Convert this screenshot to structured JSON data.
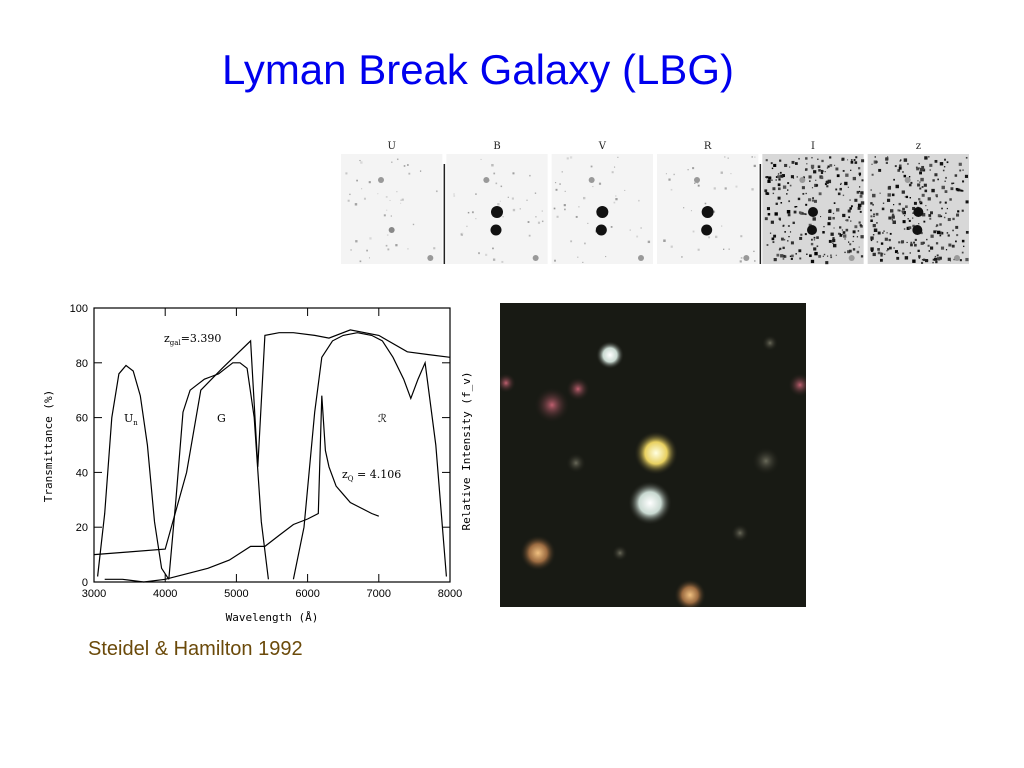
{
  "title": "Lyman Break Galaxy (LBG)",
  "citation": "Steidel & Hamilton 1992",
  "band_strip": {
    "bands": [
      "U",
      "B",
      "V",
      "R",
      "I",
      "z"
    ]
  },
  "chart_data": {
    "type": "line",
    "xlabel": "Wavelength (Å)",
    "ylabel": "Transmittance (%)",
    "ylabel_right": "Relative Intensity (f_v)",
    "xlim": [
      3000,
      8000
    ],
    "ylim": [
      0,
      100
    ],
    "x_ticks": [
      "3000",
      "4000",
      "5000",
      "6000",
      "7000",
      "8000"
    ],
    "y_ticks": [
      "0",
      "20",
      "40",
      "60",
      "80",
      "100"
    ],
    "annotations": {
      "zgal": "z",
      "zgal_sub": "gal",
      "zgal_val": "=3.390",
      "zq": "z",
      "zq_sub": "Q",
      "zq_val": " = 4.106",
      "un": "U",
      "un_sub": "n",
      "g": "G",
      "r": "ℛ"
    },
    "series": [
      {
        "x": [
          3050,
          3150,
          3250,
          3350,
          3450,
          3550,
          3650,
          3750,
          3850,
          3950,
          4050
        ],
        "y": [
          2,
          25,
          60,
          76,
          79,
          77,
          68,
          50,
          22,
          5,
          1
        ]
      },
      {
        "x": [
          4050,
          4150,
          4250,
          4350,
          4450,
          4550,
          4650,
          4750,
          4850,
          4950,
          5050,
          5150,
          5250,
          5350,
          5450
        ],
        "y": [
          1,
          30,
          62,
          70,
          72,
          74,
          75,
          76,
          78,
          80,
          80,
          78,
          60,
          22,
          1
        ]
      },
      {
        "x": [
          5800,
          5950,
          6100,
          6200,
          6350,
          6500,
          6700,
          6900,
          7050,
          7200,
          7350,
          7450,
          7550,
          7650,
          7800,
          7950
        ],
        "y": [
          1,
          20,
          62,
          82,
          88,
          90,
          91,
          90,
          88,
          82,
          74,
          67,
          74,
          80,
          50,
          2
        ]
      },
      {
        "x": [
          3000,
          3500,
          4000,
          4300,
          4500,
          4800,
          5000,
          5200,
          5300,
          5400,
          5600,
          5800,
          6100,
          6300,
          6600,
          7000,
          7400,
          7700,
          8000
        ],
        "y": [
          10,
          11,
          12,
          40,
          70,
          78,
          83,
          88,
          42,
          90,
          91,
          91,
          90,
          89,
          92,
          90,
          84,
          83,
          82
        ]
      },
      {
        "x": [
          3150,
          3400,
          3700,
          4000,
          4300,
          4600,
          4900,
          5200,
          5400,
          5600,
          5800,
          6000,
          6150,
          6200,
          6250,
          6300,
          6400,
          6500,
          6600,
          6750,
          6900,
          7000
        ],
        "y": [
          1,
          1,
          0,
          1,
          3,
          5,
          8,
          13,
          13,
          17,
          21,
          23,
          25,
          68,
          48,
          42,
          35,
          32,
          29,
          27,
          25,
          24
        ]
      }
    ]
  }
}
